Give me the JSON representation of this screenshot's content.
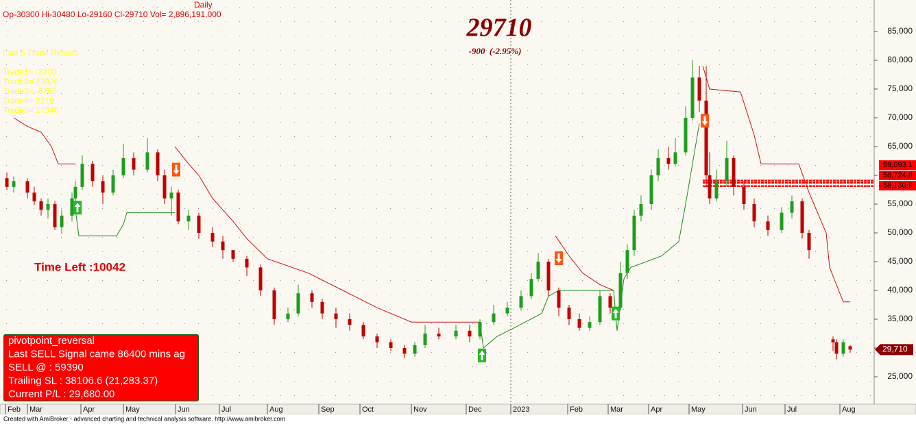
{
  "header": {
    "ohlc": "Op-30300  Hi-30480  Lo-29160  Cl-29710  Vol= 2,896,191.000",
    "interval": "Daily",
    "big_price": "29710",
    "change": "-900  (-2.95%)",
    "trades_title": "Last 5 Trade Results",
    "trades": [
      "Trade1= -3700",
      "Trade2= 23820",
      "Trade3= -8750",
      "Trade4= 2210",
      "Trade5= 17340"
    ],
    "time_left": "Time Left :10042"
  },
  "info_box": [
    "pivotpoint_reversal",
    "Last SELL Signal came 86400 mins ag",
    "SELL @ : 59390",
    "Trailing SL : 38106.6 (21,283.37)",
    "Current P/L : 29,680.00"
  ],
  "footer": "Created with AmiBroker - advanced charting and technical analysis software. http://www.amibroker.com",
  "chart_data": {
    "type": "candlestick",
    "xlim": [
      0,
      255
    ],
    "ylim": [
      20238,
      90476
    ],
    "xticks": [
      {
        "value": 1.6,
        "label": "Feb"
      },
      {
        "value": 8,
        "label": "Mar"
      },
      {
        "value": 23.6,
        "label": "Apr"
      },
      {
        "value": 36,
        "label": "May"
      },
      {
        "value": 51.2,
        "label": "Jun"
      },
      {
        "value": 64,
        "label": "Jul"
      },
      {
        "value": 78,
        "label": "Aug"
      },
      {
        "value": 93,
        "label": "Sep"
      },
      {
        "value": 105,
        "label": "Oct"
      },
      {
        "value": 120,
        "label": "Nov"
      },
      {
        "value": 136,
        "label": "Dec"
      },
      {
        "value": 149,
        "label": "2023"
      },
      {
        "value": 165.6,
        "label": "Feb"
      },
      {
        "value": 177.4,
        "label": "Mar"
      },
      {
        "value": 189.2,
        "label": "Apr"
      },
      {
        "value": 201,
        "label": "May"
      },
      {
        "value": 216.6,
        "label": "Jun"
      },
      {
        "value": 229,
        "label": "Jul"
      },
      {
        "value": 245,
        "label": "Aug"
      }
    ],
    "year_tick": 11,
    "yticks": [
      {
        "value": 25000,
        "label": "25,000"
      },
      {
        "value": 30000,
        "label": "30,000"
      },
      {
        "value": 35000,
        "label": "35,000"
      },
      {
        "value": 40000,
        "label": "40,000"
      },
      {
        "value": 45000,
        "label": "45,000"
      },
      {
        "value": 50000,
        "label": "50,000"
      },
      {
        "value": 55000,
        "label": "55,000"
      },
      {
        "value": 60000,
        "label": "60,000"
      },
      {
        "value": 65000,
        "label": "65,000"
      },
      {
        "value": 70000,
        "label": "70,000"
      },
      {
        "value": 75000,
        "label": "75,000"
      },
      {
        "value": 80000,
        "label": "80,000"
      },
      {
        "value": 85000,
        "label": "85,000"
      }
    ],
    "up_color": "#1e9e1e",
    "down_color": "#c00000",
    "x": [
      2,
      4,
      8,
      10,
      12,
      14,
      16,
      18,
      21,
      22,
      24,
      27,
      30,
      33,
      36,
      39,
      43,
      46,
      48,
      50,
      52,
      55,
      58,
      62,
      65,
      68,
      72,
      76,
      80,
      84,
      87,
      91,
      94,
      98,
      102,
      106,
      110,
      114,
      118,
      121,
      124,
      128,
      133,
      137,
      140,
      144,
      148,
      152,
      155,
      157,
      160,
      163,
      166,
      169,
      172,
      175,
      178,
      181,
      183,
      185,
      187,
      190,
      192,
      195,
      197,
      200,
      202,
      204,
      206,
      207,
      209,
      212,
      214,
      217,
      220,
      224,
      228,
      231,
      234,
      236,
      243,
      244,
      246,
      248
    ],
    "open": [
      59500,
      58000,
      59000,
      57000,
      55500,
      54000,
      55000,
      51000,
      53000,
      56000,
      58000,
      62000,
      59000,
      57000,
      60000,
      63000,
      61000,
      64000,
      60000,
      56000,
      57000,
      52000,
      53000,
      50000,
      48500,
      47000,
      45500,
      44000,
      40000,
      35000,
      36000,
      39500,
      38000,
      36000,
      35000,
      34000,
      32000,
      31000,
      30000,
      29000,
      30500,
      32500,
      32000,
      33000,
      32000,
      34500,
      36000,
      37000,
      39000,
      42000,
      45000,
      40000,
      37000,
      35000,
      33500,
      34500,
      39000,
      37000,
      43000,
      47000,
      53000,
      55000,
      60000,
      63000,
      62000,
      64000,
      70000,
      77000,
      73000,
      60000,
      56000,
      59000,
      63000,
      58000,
      55000,
      52000,
      50500,
      53500,
      55500,
      50000,
      31500,
      31000,
      29000,
      30300
    ],
    "high": [
      60500,
      59800,
      59500,
      58000,
      56000,
      56000,
      55500,
      54000,
      57000,
      59000,
      63500,
      62500,
      60000,
      61000,
      65500,
      64000,
      66500,
      64500,
      61000,
      58000,
      57500,
      54000,
      53500,
      51000,
      49500,
      47000,
      46000,
      44500,
      40500,
      37000,
      41000,
      40000,
      38500,
      37000,
      36000,
      34500,
      32500,
      31500,
      30500,
      31000,
      34000,
      33500,
      34000,
      34000,
      35000,
      37500,
      38000,
      40000,
      43000,
      46500,
      45500,
      40500,
      37500,
      36000,
      35500,
      40000,
      39500,
      45000,
      48000,
      54000,
      56500,
      61000,
      64500,
      65000,
      66500,
      72000,
      80000,
      79000,
      79000,
      64000,
      61000,
      66000,
      63500,
      59000,
      56000,
      53000,
      54500,
      56500,
      56000,
      50500,
      32000,
      31500,
      31500,
      30480
    ],
    "low": [
      57500,
      57000,
      56000,
      54800,
      53000,
      52500,
      50500,
      49800,
      52000,
      55000,
      57500,
      58000,
      55000,
      56500,
      59500,
      60000,
      60500,
      59000,
      55000,
      53000,
      51500,
      50500,
      49000,
      47500,
      45500,
      45000,
      42500,
      39000,
      34000,
      34500,
      35500,
      37000,
      35000,
      33500,
      33000,
      31500,
      30000,
      29500,
      28200,
      28500,
      30000,
      31500,
      31500,
      31000,
      31500,
      34000,
      35500,
      36500,
      38500,
      41500,
      39000,
      35500,
      34000,
      33000,
      33000,
      34000,
      36000,
      36500,
      42000,
      46000,
      52000,
      54000,
      59000,
      61000,
      61500,
      63500,
      69500,
      71000,
      58000,
      55000,
      55500,
      58000,
      56500,
      54000,
      51000,
      49500,
      50000,
      52500,
      49000,
      45500,
      29500,
      28000,
      28500,
      29160
    ],
    "close": [
      58000,
      59000,
      57000,
      55500,
      54000,
      55000,
      51000,
      53000,
      56000,
      58000,
      62000,
      59000,
      57000,
      60000,
      63000,
      61000,
      64000,
      60000,
      56000,
      57000,
      52000,
      53000,
      50000,
      48500,
      47000,
      45500,
      44000,
      40000,
      35000,
      36000,
      39500,
      38000,
      36000,
      35000,
      34000,
      32000,
      31000,
      30000,
      29000,
      30500,
      32500,
      32000,
      33000,
      32000,
      34500,
      36000,
      37000,
      39000,
      42000,
      45000,
      40000,
      37000,
      35000,
      33500,
      34500,
      39000,
      37000,
      43000,
      47000,
      53000,
      55000,
      60000,
      63000,
      62000,
      64000,
      70000,
      77000,
      73000,
      60000,
      56000,
      59000,
      63000,
      58000,
      55000,
      52000,
      50500,
      53500,
      55500,
      50000,
      47000,
      31000,
      29000,
      31000,
      29710
    ],
    "stop_line": {
      "color": "#d01010",
      "x": [
        4,
        8,
        12,
        15,
        17,
        22,
        22,
        51,
        55,
        58,
        62,
        68,
        72,
        78,
        90,
        100,
        110,
        120,
        140,
        140,
        162,
        166,
        170,
        175,
        179,
        179,
        205,
        207,
        216,
        220,
        222,
        233,
        236,
        241,
        242,
        246,
        248
      ],
      "values": [
        70000,
        68500,
        67500,
        65000,
        62000,
        62000,
        null,
        65000,
        62000,
        60000,
        56000,
        52000,
        49000,
        45500,
        43000,
        40000,
        37000,
        34500,
        34500,
        null,
        49500,
        46000,
        43000,
        41000,
        40000,
        null,
        79000,
        75000,
        74500,
        67000,
        62000,
        62000,
        57000,
        50000,
        44000,
        38000,
        38000
      ]
    },
    "trail_line": {
      "color": "#1a8c1a",
      "x": [
        22,
        23,
        34,
        36,
        37,
        51,
        51,
        140,
        141,
        145,
        150,
        158,
        160,
        163,
        179,
        180,
        182,
        184,
        193,
        198,
        200,
        204
      ],
      "values": [
        54000,
        49500,
        49500,
        51500,
        53500,
        53500,
        null,
        34500,
        30000,
        32000,
        33500,
        36000,
        39000,
        40000,
        40000,
        33000,
        42000,
        44000,
        46000,
        48500,
        55000,
        69000
      ]
    },
    "signals": {
      "buy_color": "#22bb22",
      "sell_color": "#ff5511",
      "buy_x": [
        22.6,
        140.6,
        179.6
      ],
      "buy_values": [
        54400,
        28700,
        36000
      ],
      "sell_x": [
        51.4,
        163,
        205.6
      ],
      "sell_values": [
        61000,
        45600,
        69500
      ]
    },
    "zones": {
      "color": "#ff0000",
      "x_start": 205,
      "values": [
        59093.1,
        58724.8,
        58130.9
      ],
      "labels": [
        "59,093.1",
        "58,724.8",
        "58,130.9"
      ]
    },
    "last_price": {
      "value": 29710,
      "label": "29,710"
    }
  }
}
